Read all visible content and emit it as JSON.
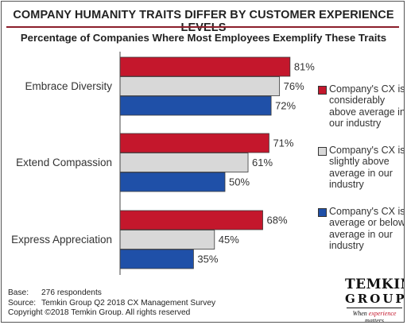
{
  "chart_data": {
    "type": "bar",
    "orientation": "horizontal",
    "title": "Company Humanity Traits Differ By Customer Experience Levels",
    "subtitle": "Percentage of Companies Where Most Employees Exemplify These Traits",
    "categories": [
      "Embrace Diversity",
      "Extend Compassion",
      "Express Appreciation"
    ],
    "series": [
      {
        "name": "Company's CX is considerably above average in our industry",
        "color": "#c4172c",
        "values": [
          81,
          71,
          68
        ],
        "labels": [
          "81%",
          "71%",
          "68%"
        ]
      },
      {
        "name": "Company's CX is slightly above average in our industry",
        "color": "#d8d8d8",
        "values": [
          76,
          61,
          45
        ],
        "labels": [
          "76%",
          "61%",
          "45%"
        ]
      },
      {
        "name": "Company's CX is average or below average in our industry",
        "color": "#1f50a8",
        "values": [
          72,
          50,
          35
        ],
        "labels": [
          "72%",
          "50%",
          "35%"
        ]
      }
    ],
    "xlim": [
      0,
      100
    ],
    "grid": false,
    "legend_position": "right"
  },
  "footer": {
    "base_label": "Base:",
    "base_value": "276 respondents",
    "source_label": "Source:",
    "source_value": "Temkin Group Q2 2018 CX Management Survey",
    "copyright": "Copyright ©2018 Temkin Group. All rights reserved"
  },
  "logo": {
    "line1": "TEMKIN",
    "line2": "GROUP",
    "tagline_before": "When ",
    "tagline_accent": "experience",
    "tagline_after": " matters"
  },
  "colors": {
    "title_rule": "#8b1e2a",
    "logo_accent": "#c4172c"
  }
}
